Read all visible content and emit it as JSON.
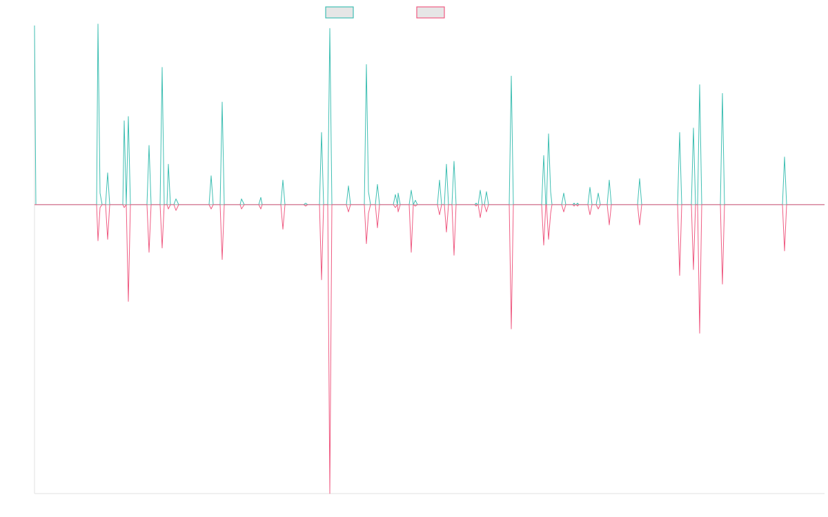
{
  "chart_data": {
    "type": "line",
    "title": "",
    "xlabel": "",
    "ylabel": "",
    "x_range": [
      0,
      1145
    ],
    "ylim": [
      -1.0,
      0.62
    ],
    "grid": false,
    "legend": {
      "position": "top-center",
      "entries": [
        {
          "label": "",
          "color": "#3fbfb3",
          "fill": "#e6e6e6"
        },
        {
          "label": "",
          "color": "#ef5b82",
          "fill": "#e6e6e6"
        }
      ]
    },
    "series": [
      {
        "color": "#3fbfb3",
        "points": [
          [
            0,
            0.62
          ],
          [
            2,
            0
          ],
          [
            90,
            0
          ],
          [
            92,
            0.625
          ],
          [
            95,
            0.04
          ],
          [
            98,
            0
          ],
          [
            103,
            0
          ],
          [
            106,
            0.11
          ],
          [
            109,
            0
          ],
          [
            128,
            0
          ],
          [
            130,
            0.29
          ],
          [
            133,
            0
          ],
          [
            136,
            0.305
          ],
          [
            139,
            0
          ],
          [
            163,
            0
          ],
          [
            166,
            0.205
          ],
          [
            169,
            0
          ],
          [
            182,
            0
          ],
          [
            185,
            0.475
          ],
          [
            188,
            0
          ],
          [
            192,
            0
          ],
          [
            194,
            0.14
          ],
          [
            197,
            0
          ],
          [
            202,
            0
          ],
          [
            205,
            0.02
          ],
          [
            209,
            0
          ],
          [
            253,
            0
          ],
          [
            256,
            0.1
          ],
          [
            259,
            0
          ],
          [
            269,
            0
          ],
          [
            272,
            0.355
          ],
          [
            275,
            0
          ],
          [
            298,
            0
          ],
          [
            300,
            0.02
          ],
          [
            304,
            0
          ],
          [
            325,
            0
          ],
          [
            328,
            0.025
          ],
          [
            330,
            0
          ],
          [
            357,
            0
          ],
          [
            360,
            0.085
          ],
          [
            363,
            0
          ],
          [
            390,
            0
          ],
          [
            393,
            0.005
          ],
          [
            396,
            0
          ],
          [
            413,
            0
          ],
          [
            416,
            0.25
          ],
          [
            419,
            0
          ],
          [
            425,
            0
          ],
          [
            428,
            0.61
          ],
          [
            431,
            0
          ],
          [
            452,
            0
          ],
          [
            455,
            0.065
          ],
          [
            458,
            0
          ],
          [
            478,
            0
          ],
          [
            481,
            0.485
          ],
          [
            484,
            0.045
          ],
          [
            487,
            0
          ],
          [
            494,
            0
          ],
          [
            497,
            0.07
          ],
          [
            500,
            0
          ],
          [
            520,
            0
          ],
          [
            523,
            0.035
          ],
          [
            526,
            0
          ],
          [
            527,
            0.04
          ],
          [
            530,
            0
          ],
          [
            543,
            0
          ],
          [
            546,
            0.05
          ],
          [
            549,
            0
          ],
          [
            552,
            0.015
          ],
          [
            555,
            0
          ],
          [
            584,
            0
          ],
          [
            587,
            0.085
          ],
          [
            590,
            0
          ],
          [
            594,
            0
          ],
          [
            597,
            0.14
          ],
          [
            600,
            0
          ],
          [
            605,
            0
          ],
          [
            608,
            0.15
          ],
          [
            611,
            0
          ],
          [
            638,
            0
          ],
          [
            640,
            0.005
          ],
          [
            642,
            0
          ],
          [
            643,
            0
          ],
          [
            646,
            0.05
          ],
          [
            649,
            0
          ],
          [
            652,
            0
          ],
          [
            655,
            0.045
          ],
          [
            658,
            0
          ],
          [
            688,
            0
          ],
          [
            691,
            0.445
          ],
          [
            694,
            0
          ],
          [
            735,
            0
          ],
          [
            738,
            0.17
          ],
          [
            741,
            0
          ],
          [
            742,
            0
          ],
          [
            745,
            0.245
          ],
          [
            748,
            0.045
          ],
          [
            750,
            0
          ],
          [
            764,
            0
          ],
          [
            767,
            0.04
          ],
          [
            770,
            0
          ],
          [
            780,
            0
          ],
          [
            782,
            0.005
          ],
          [
            784,
            0
          ],
          [
            785,
            0
          ],
          [
            787,
            0.005
          ],
          [
            789,
            0
          ],
          [
            802,
            0
          ],
          [
            805,
            0.06
          ],
          [
            808,
            0
          ],
          [
            814,
            0
          ],
          [
            817,
            0.04
          ],
          [
            820,
            0
          ],
          [
            830,
            0
          ],
          [
            833,
            0.085
          ],
          [
            836,
            0
          ],
          [
            874,
            0
          ],
          [
            877,
            0.09
          ],
          [
            880,
            0
          ],
          [
            932,
            0
          ],
          [
            935,
            0.25
          ],
          [
            938,
            0
          ],
          [
            952,
            0
          ],
          [
            955,
            0.265
          ],
          [
            958,
            0
          ],
          [
            961,
            0
          ],
          [
            964,
            0.415
          ],
          [
            967,
            0
          ],
          [
            994,
            0
          ],
          [
            997,
            0.385
          ],
          [
            1000,
            0
          ],
          [
            1084,
            0
          ],
          [
            1087,
            0.165
          ],
          [
            1090,
            0
          ],
          [
            1145,
            0
          ]
        ]
      },
      {
        "color": "#ef5b82",
        "points": [
          [
            0,
            0
          ],
          [
            90,
            0
          ],
          [
            92,
            -0.125
          ],
          [
            95,
            -0.01
          ],
          [
            98,
            0
          ],
          [
            103,
            0
          ],
          [
            106,
            -0.12
          ],
          [
            109,
            0
          ],
          [
            128,
            0
          ],
          [
            130,
            -0.01
          ],
          [
            133,
            0
          ],
          [
            136,
            -0.335
          ],
          [
            139,
            0
          ],
          [
            163,
            0
          ],
          [
            166,
            -0.165
          ],
          [
            169,
            0
          ],
          [
            182,
            0
          ],
          [
            185,
            -0.15
          ],
          [
            188,
            0
          ],
          [
            192,
            0
          ],
          [
            194,
            -0.015
          ],
          [
            197,
            0
          ],
          [
            202,
            0
          ],
          [
            205,
            -0.02
          ],
          [
            209,
            0
          ],
          [
            253,
            0
          ],
          [
            256,
            -0.015
          ],
          [
            259,
            0
          ],
          [
            269,
            0
          ],
          [
            272,
            -0.19
          ],
          [
            275,
            0
          ],
          [
            298,
            0
          ],
          [
            300,
            -0.015
          ],
          [
            304,
            0
          ],
          [
            325,
            0
          ],
          [
            328,
            -0.015
          ],
          [
            330,
            0
          ],
          [
            357,
            0
          ],
          [
            360,
            -0.085
          ],
          [
            363,
            0
          ],
          [
            390,
            0
          ],
          [
            393,
            -0.005
          ],
          [
            396,
            0
          ],
          [
            413,
            0
          ],
          [
            416,
            -0.26
          ],
          [
            419,
            0
          ],
          [
            425,
            0
          ],
          [
            428,
            -1.0
          ],
          [
            431,
            0
          ],
          [
            452,
            0
          ],
          [
            455,
            -0.025
          ],
          [
            458,
            0
          ],
          [
            478,
            0
          ],
          [
            481,
            -0.135
          ],
          [
            484,
            -0.03
          ],
          [
            487,
            0
          ],
          [
            494,
            0
          ],
          [
            497,
            -0.08
          ],
          [
            500,
            0
          ],
          [
            520,
            0
          ],
          [
            523,
            -0.01
          ],
          [
            526,
            0
          ],
          [
            527,
            -0.025
          ],
          [
            530,
            0
          ],
          [
            543,
            0
          ],
          [
            546,
            -0.165
          ],
          [
            549,
            0
          ],
          [
            552,
            -0.005
          ],
          [
            555,
            0
          ],
          [
            584,
            0
          ],
          [
            587,
            -0.035
          ],
          [
            590,
            0
          ],
          [
            594,
            0
          ],
          [
            597,
            -0.095
          ],
          [
            600,
            0
          ],
          [
            605,
            0
          ],
          [
            608,
            -0.175
          ],
          [
            611,
            0
          ],
          [
            638,
            0
          ],
          [
            640,
            -0.005
          ],
          [
            642,
            0
          ],
          [
            643,
            0
          ],
          [
            646,
            -0.045
          ],
          [
            649,
            0
          ],
          [
            652,
            0
          ],
          [
            655,
            -0.025
          ],
          [
            658,
            0
          ],
          [
            688,
            0
          ],
          [
            691,
            -0.43
          ],
          [
            694,
            0
          ],
          [
            735,
            0
          ],
          [
            738,
            -0.14
          ],
          [
            741,
            0
          ],
          [
            742,
            0
          ],
          [
            745,
            -0.12
          ],
          [
            748,
            -0.03
          ],
          [
            750,
            0
          ],
          [
            764,
            0
          ],
          [
            767,
            -0.025
          ],
          [
            770,
            0
          ],
          [
            780,
            0
          ],
          [
            782,
            -0.005
          ],
          [
            784,
            0
          ],
          [
            785,
            0
          ],
          [
            787,
            -0.005
          ],
          [
            789,
            0
          ],
          [
            802,
            0
          ],
          [
            805,
            -0.035
          ],
          [
            808,
            0
          ],
          [
            814,
            0
          ],
          [
            817,
            -0.015
          ],
          [
            820,
            0
          ],
          [
            830,
            0
          ],
          [
            833,
            -0.07
          ],
          [
            836,
            0
          ],
          [
            874,
            0
          ],
          [
            877,
            -0.07
          ],
          [
            880,
            0
          ],
          [
            932,
            0
          ],
          [
            935,
            -0.245
          ],
          [
            938,
            0
          ],
          [
            952,
            0
          ],
          [
            955,
            -0.225
          ],
          [
            958,
            0
          ],
          [
            961,
            0
          ],
          [
            964,
            -0.445
          ],
          [
            967,
            0
          ],
          [
            994,
            0
          ],
          [
            997,
            -0.275
          ],
          [
            1000,
            0
          ],
          [
            1084,
            0
          ],
          [
            1087,
            -0.16
          ],
          [
            1090,
            0
          ],
          [
            1145,
            0
          ]
        ]
      }
    ]
  }
}
